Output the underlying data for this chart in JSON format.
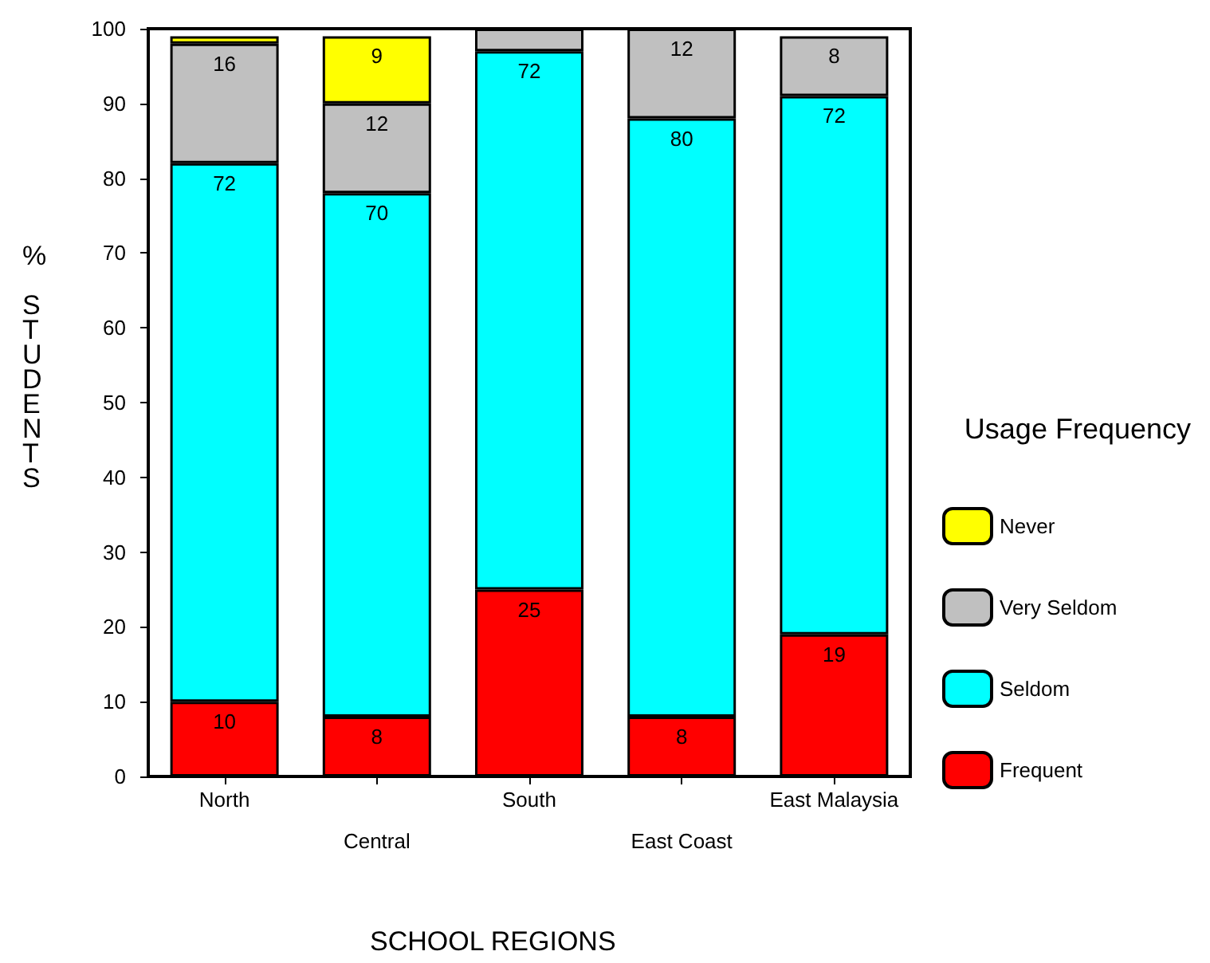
{
  "chart_data": {
    "type": "bar",
    "stacked": true,
    "xlabel": "SCHOOL REGIONS",
    "ylabel": "% STUDENTS",
    "legend_title": "Usage Frequency",
    "legend": "right",
    "categories": [
      "North",
      "Central",
      "South",
      "East Coast",
      "East Malaysia"
    ],
    "ylim": [
      0,
      100
    ],
    "yticks": [
      0,
      10,
      20,
      30,
      40,
      50,
      60,
      70,
      80,
      90,
      100
    ],
    "grid": false,
    "series": [
      {
        "name": "Frequent",
        "color": "#ff0000",
        "values": [
          10,
          8,
          25,
          8,
          19
        ],
        "value_labels": [
          "10",
          "8",
          "25",
          "8",
          "19"
        ]
      },
      {
        "name": "Seldom",
        "color": "#00ffff",
        "values": [
          72,
          70,
          72,
          80,
          72
        ],
        "value_labels": [
          "72",
          "70",
          "72",
          "80",
          "72"
        ]
      },
      {
        "name": "Very Seldom",
        "color": "#c0c0c0",
        "values": [
          16,
          12,
          3,
          12,
          8
        ],
        "value_labels": [
          "16",
          "12",
          null,
          "12",
          "8"
        ]
      },
      {
        "name": "Never",
        "color": "#ffff00",
        "values": [
          1,
          9,
          null,
          null,
          null
        ],
        "value_labels": [
          null,
          "9",
          null,
          null,
          null
        ]
      }
    ]
  }
}
